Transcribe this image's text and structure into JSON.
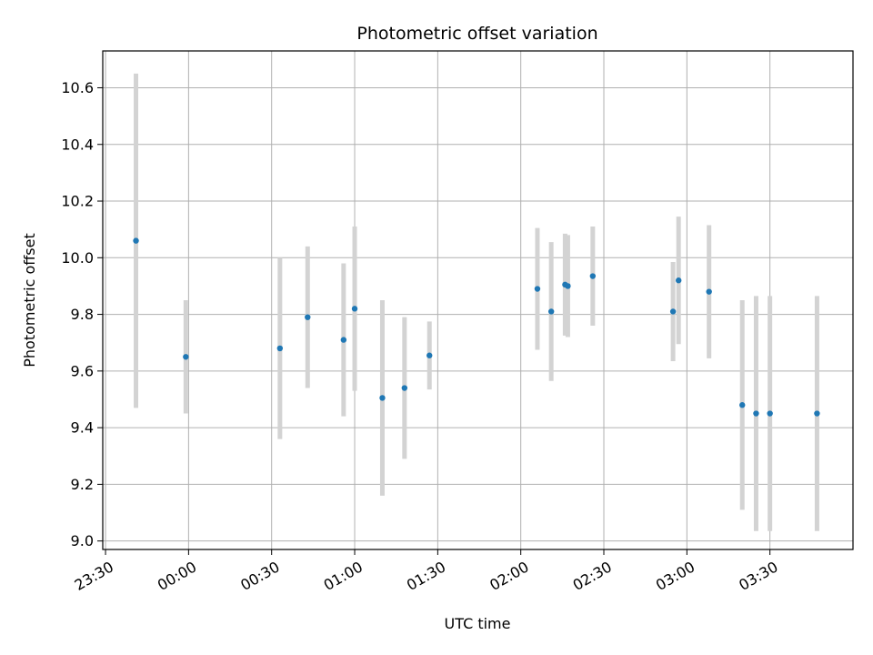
{
  "chart_data": {
    "type": "scatter",
    "title": "Photometric offset variation",
    "xlabel": "UTC time",
    "ylabel": "Photometric offset",
    "x_tick_labels": [
      "23:30",
      "00:00",
      "00:30",
      "01:00",
      "01:30",
      "02:00",
      "02:30",
      "03:00",
      "03:30"
    ],
    "y_tick_labels": [
      "9.0",
      "9.2",
      "9.4",
      "9.6",
      "9.8",
      "10.0",
      "10.2",
      "10.4",
      "10.6"
    ],
    "ylim": [
      8.97,
      10.73
    ],
    "xlim": [
      "23:29",
      "04:00"
    ],
    "grid": true,
    "colors": {
      "point": "#1f77b4",
      "errorbar": "#d3d3d3",
      "grid": "#b0b0b0"
    },
    "series": [
      {
        "points": [
          {
            "x": "23:41",
            "y": 10.06,
            "err": 0.59
          },
          {
            "x": "23:59",
            "y": 9.65,
            "err": 0.2
          },
          {
            "x": "00:33",
            "y": 9.68,
            "err": 0.32
          },
          {
            "x": "00:43",
            "y": 9.79,
            "err": 0.25
          },
          {
            "x": "00:56",
            "y": 9.71,
            "err": 0.27
          },
          {
            "x": "01:00",
            "y": 9.82,
            "err": 0.29
          },
          {
            "x": "01:10",
            "y": 9.505,
            "err": 0.345
          },
          {
            "x": "01:18",
            "y": 9.54,
            "err": 0.25
          },
          {
            "x": "01:27",
            "y": 9.655,
            "err": 0.12
          },
          {
            "x": "02:06",
            "y": 9.89,
            "err": 0.215
          },
          {
            "x": "02:11",
            "y": 9.81,
            "err": 0.245
          },
          {
            "x": "02:16",
            "y": 9.905,
            "err": 0.18
          },
          {
            "x": "02:17",
            "y": 9.9,
            "err": 0.18
          },
          {
            "x": "02:26",
            "y": 9.935,
            "err": 0.175
          },
          {
            "x": "02:55",
            "y": 9.81,
            "err": 0.175
          },
          {
            "x": "02:57",
            "y": 9.92,
            "err": 0.225
          },
          {
            "x": "03:08",
            "y": 9.88,
            "err": 0.235
          },
          {
            "x": "03:20",
            "y": 9.48,
            "err": 0.37
          },
          {
            "x": "03:25",
            "y": 9.45,
            "err": 0.415
          },
          {
            "x": "03:30",
            "y": 9.45,
            "err": 0.415
          },
          {
            "x": "03:47",
            "y": 9.45,
            "err": 0.415
          }
        ]
      }
    ]
  }
}
